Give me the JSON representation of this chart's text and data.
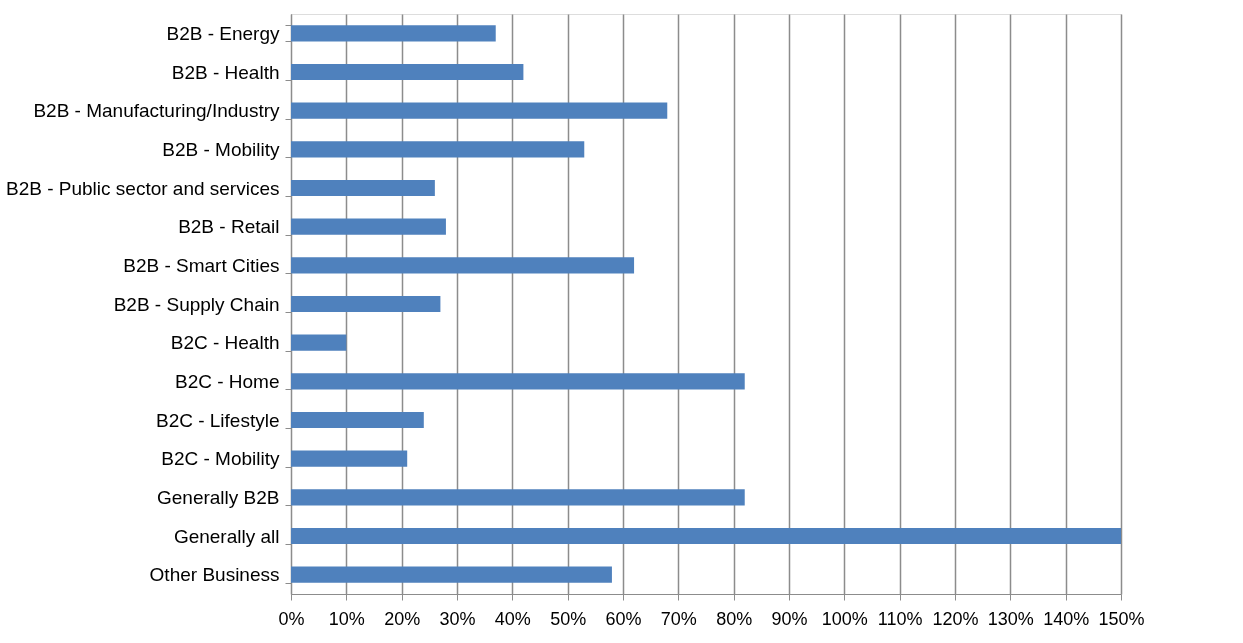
{
  "chart_data": {
    "type": "bar",
    "orientation": "horizontal",
    "categories": [
      "B2B - Energy",
      "B2B - Health",
      "B2B - Manufacturing/Industry",
      "B2B - Mobility",
      "B2B - Public sector and services",
      "B2B - Retail",
      "B2B - Smart Cities",
      "B2B - Supply Chain",
      "B2C - Health",
      "B2C - Home",
      "B2C - Lifestyle ",
      "B2C - Mobility",
      "Generally B2B",
      "Generally all",
      "Other Business"
    ],
    "values": [
      37,
      42,
      68,
      53,
      26,
      28,
      62,
      27,
      10,
      82,
      24,
      21,
      82,
      150,
      58
    ],
    "color": "#4f81bd",
    "xlim": [
      0,
      150
    ],
    "xticks": [
      {
        "value": 0,
        "label": "0%"
      },
      {
        "value": 10,
        "label": "10%"
      },
      {
        "value": 20,
        "label": "20%"
      },
      {
        "value": 30,
        "label": "30%"
      },
      {
        "value": 40,
        "label": "40%"
      },
      {
        "value": 50,
        "label": "50%"
      },
      {
        "value": 60,
        "label": "60%"
      },
      {
        "value": 70,
        "label": "70%"
      },
      {
        "value": 80,
        "label": "80%"
      },
      {
        "value": 90,
        "label": "90%"
      },
      {
        "value": 100,
        "label": "100%"
      },
      {
        "value": 110,
        "label": "110%"
      },
      {
        "value": 120,
        "label": "120%"
      },
      {
        "value": 130,
        "label": "130%"
      },
      {
        "value": 140,
        "label": "140%"
      },
      {
        "value": 150,
        "label": "150%"
      }
    ],
    "grid": "x"
  }
}
